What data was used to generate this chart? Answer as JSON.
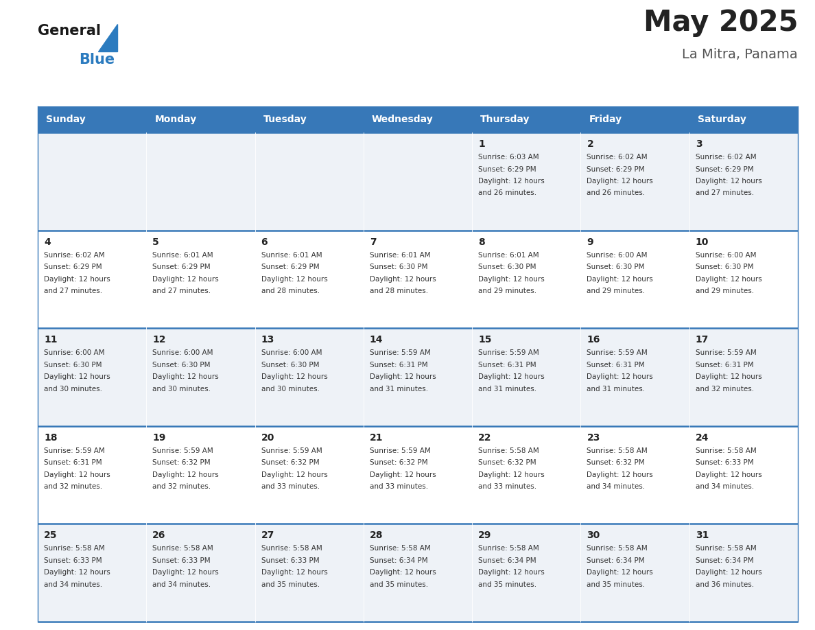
{
  "title": "May 2025",
  "subtitle": "La Mitra, Panama",
  "days_of_week": [
    "Sunday",
    "Monday",
    "Tuesday",
    "Wednesday",
    "Thursday",
    "Friday",
    "Saturday"
  ],
  "header_bg": "#3778b8",
  "header_text": "#ffffff",
  "cell_bg_odd": "#eef2f7",
  "cell_bg_even": "#ffffff",
  "cell_border": "#3778b8",
  "day_num_color": "#222222",
  "text_color": "#333333",
  "calendar_data": [
    [
      null,
      null,
      null,
      null,
      {
        "day": 1,
        "sunrise": "6:03 AM",
        "sunset": "6:29 PM",
        "daylight": "12 hours and 26 minutes."
      },
      {
        "day": 2,
        "sunrise": "6:02 AM",
        "sunset": "6:29 PM",
        "daylight": "12 hours and 26 minutes."
      },
      {
        "day": 3,
        "sunrise": "6:02 AM",
        "sunset": "6:29 PM",
        "daylight": "12 hours and 27 minutes."
      }
    ],
    [
      {
        "day": 4,
        "sunrise": "6:02 AM",
        "sunset": "6:29 PM",
        "daylight": "12 hours and 27 minutes."
      },
      {
        "day": 5,
        "sunrise": "6:01 AM",
        "sunset": "6:29 PM",
        "daylight": "12 hours and 27 minutes."
      },
      {
        "day": 6,
        "sunrise": "6:01 AM",
        "sunset": "6:29 PM",
        "daylight": "12 hours and 28 minutes."
      },
      {
        "day": 7,
        "sunrise": "6:01 AM",
        "sunset": "6:30 PM",
        "daylight": "12 hours and 28 minutes."
      },
      {
        "day": 8,
        "sunrise": "6:01 AM",
        "sunset": "6:30 PM",
        "daylight": "12 hours and 29 minutes."
      },
      {
        "day": 9,
        "sunrise": "6:00 AM",
        "sunset": "6:30 PM",
        "daylight": "12 hours and 29 minutes."
      },
      {
        "day": 10,
        "sunrise": "6:00 AM",
        "sunset": "6:30 PM",
        "daylight": "12 hours and 29 minutes."
      }
    ],
    [
      {
        "day": 11,
        "sunrise": "6:00 AM",
        "sunset": "6:30 PM",
        "daylight": "12 hours and 30 minutes."
      },
      {
        "day": 12,
        "sunrise": "6:00 AM",
        "sunset": "6:30 PM",
        "daylight": "12 hours and 30 minutes."
      },
      {
        "day": 13,
        "sunrise": "6:00 AM",
        "sunset": "6:30 PM",
        "daylight": "12 hours and 30 minutes."
      },
      {
        "day": 14,
        "sunrise": "5:59 AM",
        "sunset": "6:31 PM",
        "daylight": "12 hours and 31 minutes."
      },
      {
        "day": 15,
        "sunrise": "5:59 AM",
        "sunset": "6:31 PM",
        "daylight": "12 hours and 31 minutes."
      },
      {
        "day": 16,
        "sunrise": "5:59 AM",
        "sunset": "6:31 PM",
        "daylight": "12 hours and 31 minutes."
      },
      {
        "day": 17,
        "sunrise": "5:59 AM",
        "sunset": "6:31 PM",
        "daylight": "12 hours and 32 minutes."
      }
    ],
    [
      {
        "day": 18,
        "sunrise": "5:59 AM",
        "sunset": "6:31 PM",
        "daylight": "12 hours and 32 minutes."
      },
      {
        "day": 19,
        "sunrise": "5:59 AM",
        "sunset": "6:32 PM",
        "daylight": "12 hours and 32 minutes."
      },
      {
        "day": 20,
        "sunrise": "5:59 AM",
        "sunset": "6:32 PM",
        "daylight": "12 hours and 33 minutes."
      },
      {
        "day": 21,
        "sunrise": "5:59 AM",
        "sunset": "6:32 PM",
        "daylight": "12 hours and 33 minutes."
      },
      {
        "day": 22,
        "sunrise": "5:58 AM",
        "sunset": "6:32 PM",
        "daylight": "12 hours and 33 minutes."
      },
      {
        "day": 23,
        "sunrise": "5:58 AM",
        "sunset": "6:32 PM",
        "daylight": "12 hours and 34 minutes."
      },
      {
        "day": 24,
        "sunrise": "5:58 AM",
        "sunset": "6:33 PM",
        "daylight": "12 hours and 34 minutes."
      }
    ],
    [
      {
        "day": 25,
        "sunrise": "5:58 AM",
        "sunset": "6:33 PM",
        "daylight": "12 hours and 34 minutes."
      },
      {
        "day": 26,
        "sunrise": "5:58 AM",
        "sunset": "6:33 PM",
        "daylight": "12 hours and 34 minutes."
      },
      {
        "day": 27,
        "sunrise": "5:58 AM",
        "sunset": "6:33 PM",
        "daylight": "12 hours and 35 minutes."
      },
      {
        "day": 28,
        "sunrise": "5:58 AM",
        "sunset": "6:34 PM",
        "daylight": "12 hours and 35 minutes."
      },
      {
        "day": 29,
        "sunrise": "5:58 AM",
        "sunset": "6:34 PM",
        "daylight": "12 hours and 35 minutes."
      },
      {
        "day": 30,
        "sunrise": "5:58 AM",
        "sunset": "6:34 PM",
        "daylight": "12 hours and 35 minutes."
      },
      {
        "day": 31,
        "sunrise": "5:58 AM",
        "sunset": "6:34 PM",
        "daylight": "12 hours and 36 minutes."
      }
    ]
  ]
}
